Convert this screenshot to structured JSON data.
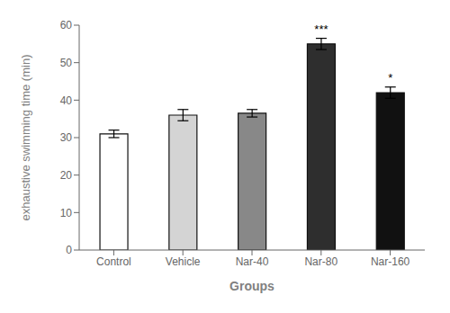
{
  "chart_data": {
    "type": "bar",
    "categories": [
      "Control",
      "Vehicle",
      "Nar-40",
      "Nar-80",
      "Nar-160"
    ],
    "values": [
      31.0,
      36.0,
      36.5,
      55.0,
      42.0
    ],
    "errors": [
      1.0,
      1.5,
      1.0,
      1.5,
      1.5
    ],
    "colors": [
      "#ffffff",
      "#d4d4d4",
      "#888888",
      "#2e2e2e",
      "#111111"
    ],
    "annotations": [
      null,
      null,
      null,
      "***",
      "*"
    ],
    "xlabel": "Groups",
    "ylabel": "exhaustive swimming time (min)",
    "ylim": [
      0,
      60
    ],
    "yticks": [
      0,
      10,
      20,
      30,
      40,
      50,
      60
    ],
    "grid": false
  }
}
